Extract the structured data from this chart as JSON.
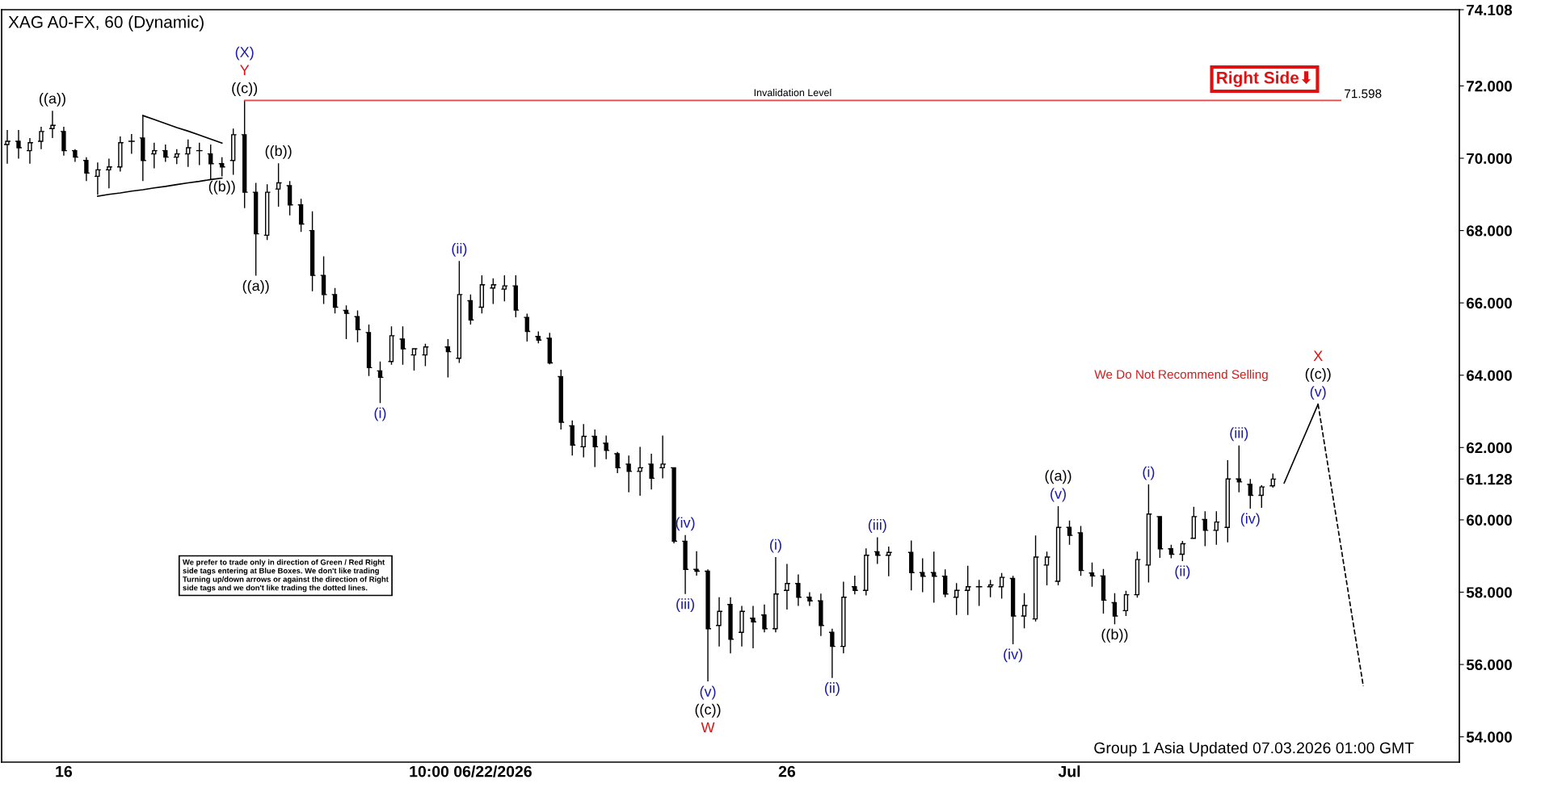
{
  "chart_data": {
    "type": "candlestick",
    "title": "XAG A0-FX, 60 (Dynamic)",
    "color": "#000000",
    "categories": [
      null,
      null,
      null,
      null,
      null,
      "16",
      null,
      null,
      null,
      null,
      null,
      null,
      null,
      null,
      null,
      null,
      null,
      null,
      null,
      null,
      null,
      null,
      null,
      null,
      null,
      null,
      null,
      null,
      null,
      null,
      null,
      null,
      null,
      null,
      null,
      null,
      null,
      null,
      null,
      null,
      null,
      "10:00 06/22/2026",
      null,
      null,
      null,
      null,
      null,
      null,
      null,
      null,
      null,
      null,
      null,
      null,
      null,
      null,
      null,
      null,
      null,
      null,
      null,
      null,
      null,
      null,
      null,
      null,
      null,
      null,
      null,
      "26",
      null,
      null,
      null,
      null,
      null,
      null,
      null,
      null,
      null,
      null,
      null,
      null,
      null,
      null,
      null,
      null,
      null,
      null,
      null,
      null,
      null,
      null,
      null,
      null,
      "Jul",
      null,
      null,
      null,
      null,
      null,
      null,
      null,
      null,
      null,
      null,
      null,
      null,
      null,
      null,
      null,
      null,
      null,
      null,
      null,
      null,
      null,
      null,
      null,
      null,
      null,
      null,
      null,
      null,
      null,
      null,
      null,
      null,
      null,
      null
    ],
    "ohlc": [
      [
        70.38,
        70.78,
        69.85,
        70.47
      ],
      [
        70.47,
        70.78,
        69.99,
        70.29
      ],
      [
        70.21,
        70.56,
        69.85,
        70.43
      ],
      [
        70.47,
        70.87,
        70.25,
        70.74
      ],
      [
        70.82,
        71.31,
        70.56,
        70.91
      ],
      [
        70.74,
        70.87,
        70.07,
        70.21
      ],
      [
        70.21,
        70.25,
        69.9,
        70.03
      ],
      [
        69.94,
        70.03,
        69.37,
        69.59
      ],
      [
        69.5,
        69.88,
        68.99,
        69.68
      ],
      [
        69.68,
        69.99,
        69.17,
        69.76
      ],
      [
        69.76,
        70.6,
        69.63,
        70.43
      ],
      [
        70.47,
        70.67,
        70.12,
        70.47
      ],
      [
        70.56,
        71.19,
        69.37,
        69.94
      ],
      [
        70.12,
        70.43,
        69.72,
        70.21
      ],
      [
        70.21,
        70.38,
        69.9,
        70.03
      ],
      [
        70.03,
        70.25,
        69.84,
        70.12
      ],
      [
        70.12,
        70.52,
        69.76,
        70.29
      ],
      [
        70.21,
        70.43,
        69.81,
        70.21
      ],
      [
        70.12,
        70.38,
        69.41,
        69.85
      ],
      [
        69.85,
        70.03,
        69.5,
        69.76
      ],
      [
        69.94,
        70.82,
        69.54,
        70.65
      ],
      [
        70.65,
        71.598,
        68.62,
        69.06
      ],
      [
        69.06,
        69.32,
        66.75,
        67.91
      ],
      [
        67.87,
        69.28,
        67.74,
        69.06
      ],
      [
        69.15,
        69.86,
        68.66,
        69.32
      ],
      [
        69.24,
        69.37,
        68.42,
        68.71
      ],
      [
        68.71,
        68.88,
        67.96,
        68.18
      ],
      [
        68.0,
        68.53,
        66.32,
        66.76
      ],
      [
        66.76,
        67.29,
        65.97,
        66.23
      ],
      [
        66.23,
        66.41,
        65.71,
        65.88
      ],
      [
        65.79,
        65.93,
        65.0,
        65.71
      ],
      [
        65.62,
        65.79,
        64.91,
        65.26
      ],
      [
        65.18,
        65.4,
        63.98,
        64.21
      ],
      [
        64.12,
        64.38,
        63.23,
        63.94
      ],
      [
        64.38,
        65.35,
        64.29,
        65.09
      ],
      [
        65.0,
        65.35,
        64.29,
        64.73
      ],
      [
        64.56,
        64.75,
        64.13,
        64.73
      ],
      [
        64.56,
        64.87,
        64.25,
        64.78
      ],
      null,
      [
        64.78,
        65.0,
        63.94,
        64.65
      ],
      [
        64.47,
        67.16,
        64.34,
        66.23
      ],
      [
        66.06,
        66.23,
        65.4,
        65.53
      ],
      [
        65.88,
        66.76,
        65.71,
        66.5
      ],
      [
        66.41,
        66.68,
        65.97,
        66.5
      ],
      [
        66.38,
        66.76,
        66.04,
        66.47
      ],
      [
        66.47,
        66.76,
        65.6,
        65.8
      ],
      [
        65.6,
        65.7,
        64.93,
        65.21
      ],
      [
        65.07,
        65.21,
        64.88,
        64.97
      ],
      [
        65.02,
        65.17,
        64.3,
        64.34
      ],
      [
        63.96,
        64.15,
        62.5,
        62.7
      ],
      [
        62.6,
        62.75,
        61.78,
        62.07
      ],
      [
        62.02,
        62.65,
        61.73,
        62.31
      ],
      [
        62.31,
        62.5,
        61.46,
        62.02
      ],
      [
        62.12,
        62.33,
        61.68,
        61.92
      ],
      [
        61.83,
        61.88,
        61.29,
        61.44
      ],
      [
        61.54,
        61.78,
        60.76,
        61.34
      ],
      [
        61.34,
        62.02,
        60.67,
        61.44
      ],
      [
        61.54,
        61.83,
        60.84,
        61.15
      ],
      [
        61.44,
        62.33,
        61.15,
        61.54
      ],
      [
        61.44,
        61.44,
        59.35,
        59.41
      ],
      [
        59.41,
        59.58,
        57.95,
        58.63
      ],
      [
        58.63,
        59.13,
        58.46,
        58.58
      ],
      [
        58.58,
        58.63,
        55.53,
        56.99
      ],
      [
        57.08,
        57.86,
        56.5,
        57.47
      ],
      [
        57.66,
        57.86,
        56.31,
        56.7
      ],
      [
        56.89,
        57.62,
        56.5,
        57.47
      ],
      [
        57.28,
        57.62,
        56.45,
        57.18
      ],
      [
        57.37,
        57.66,
        56.89,
        56.99
      ],
      [
        56.99,
        58.97,
        56.89,
        57.95
      ],
      [
        58.05,
        58.78,
        57.52,
        58.24
      ],
      [
        58.24,
        58.49,
        57.62,
        57.86
      ],
      [
        57.86,
        58.0,
        57.62,
        57.76
      ],
      [
        57.76,
        57.96,
        56.79,
        57.08
      ],
      [
        56.89,
        56.99,
        55.63,
        56.5
      ],
      [
        56.5,
        58.29,
        56.31,
        57.86
      ],
      [
        58.15,
        58.46,
        57.94,
        58.05
      ],
      [
        58.05,
        59.21,
        57.91,
        59.02
      ],
      [
        59.12,
        59.52,
        58.78,
        59.02
      ],
      [
        59.02,
        59.26,
        58.44,
        59.1
      ],
      null,
      [
        59.1,
        59.43,
        58.05,
        58.54
      ],
      [
        58.54,
        58.94,
        58.0,
        58.44
      ],
      [
        58.54,
        59.12,
        57.71,
        58.44
      ],
      [
        58.44,
        58.63,
        57.86,
        57.95
      ],
      [
        57.86,
        58.25,
        57.37,
        58.05
      ],
      [
        58.05,
        58.73,
        57.37,
        58.15
      ],
      [
        58.15,
        58.34,
        57.62,
        58.15
      ],
      [
        58.15,
        58.34,
        57.86,
        58.2
      ],
      [
        58.15,
        58.53,
        57.82,
        58.41
      ],
      [
        58.38,
        58.45,
        56.56,
        57.34
      ],
      [
        57.34,
        57.97,
        57.0,
        57.63
      ],
      [
        57.26,
        59.57,
        57.19,
        58.97
      ],
      [
        58.75,
        59.12,
        58.19,
        58.97
      ],
      [
        58.3,
        60.38,
        58.19,
        59.79
      ],
      [
        59.79,
        59.98,
        59.31,
        59.57
      ],
      [
        59.64,
        59.83,
        58.45,
        58.6
      ],
      [
        58.53,
        58.82,
        58.15,
        58.45
      ],
      [
        58.45,
        58.64,
        57.41,
        57.78
      ],
      [
        57.71,
        57.97,
        57.11,
        57.34
      ],
      [
        57.49,
        58.04,
        57.34,
        57.93
      ],
      [
        57.93,
        59.12,
        57.85,
        58.9
      ],
      [
        58.75,
        60.98,
        58.27,
        60.16
      ],
      [
        60.09,
        60.09,
        58.95,
        59.2
      ],
      [
        59.2,
        59.31,
        58.94,
        59.05
      ],
      [
        59.05,
        59.42,
        58.86,
        59.34
      ],
      [
        59.49,
        60.36,
        59.49,
        60.09
      ],
      [
        60.01,
        60.24,
        59.27,
        59.71
      ],
      [
        59.71,
        60.24,
        59.31,
        59.94
      ],
      [
        59.79,
        61.65,
        59.38,
        61.13
      ],
      [
        61.13,
        62.06,
        60.76,
        61.05
      ],
      [
        60.98,
        61.13,
        60.31,
        60.68
      ],
      [
        60.68,
        60.96,
        60.33,
        60.91
      ],
      [
        60.94,
        61.28,
        60.89,
        61.128
      ],
      null,
      null,
      null,
      null,
      null,
      null,
      null,
      null,
      null,
      null,
      null,
      null,
      null,
      null,
      null,
      null
    ],
    "series": [
      {
        "type": "line",
        "color": "#000000",
        "values": [
          null,
          null,
          null,
          null,
          null,
          null,
          null,
          null,
          null,
          null,
          null,
          null,
          71.18,
          71.07,
          70.96,
          70.85,
          70.75,
          70.64,
          70.53,
          70.42,
          null,
          null,
          null,
          null,
          null,
          null,
          null,
          null,
          null,
          null,
          null,
          null,
          null,
          null,
          null,
          null,
          null,
          null,
          null,
          null,
          null,
          null,
          null,
          null,
          null,
          null,
          null,
          null,
          null,
          null,
          null,
          null,
          null,
          null,
          null,
          null,
          null,
          null,
          null,
          null,
          null,
          null,
          null,
          null,
          null,
          null,
          null,
          null,
          null,
          null,
          null,
          null,
          null,
          null,
          null,
          null,
          null,
          null,
          null,
          null,
          null,
          null,
          null,
          null,
          null,
          null,
          null,
          null,
          null,
          null,
          null,
          null,
          null,
          null,
          null,
          null,
          null,
          null,
          null,
          null,
          null,
          null,
          null,
          null,
          null,
          null,
          null,
          null,
          null,
          null,
          null,
          null,
          null,
          null,
          null,
          null,
          null,
          null,
          null,
          null,
          null,
          null,
          null,
          null,
          null,
          null,
          null,
          null,
          null
        ]
      },
      {
        "type": "line",
        "color": "#000000",
        "values": [
          null,
          null,
          null,
          null,
          null,
          null,
          null,
          null,
          68.95,
          69.0,
          69.04,
          69.09,
          69.13,
          69.18,
          69.22,
          69.27,
          69.32,
          69.36,
          69.41,
          69.45,
          null,
          null,
          null,
          null,
          null,
          null,
          null,
          null,
          null,
          null,
          null,
          null,
          null,
          null,
          null,
          null,
          null,
          null,
          null,
          null,
          null,
          null,
          null,
          null,
          null,
          null,
          null,
          null,
          null,
          null,
          null,
          null,
          null,
          null,
          null,
          null,
          null,
          null,
          null,
          null,
          null,
          null,
          null,
          null,
          null,
          null,
          null,
          null,
          null,
          null,
          null,
          null,
          null,
          null,
          null,
          null,
          null,
          null,
          null,
          null,
          null,
          null,
          null,
          null,
          null,
          null,
          null,
          null,
          null,
          null,
          null,
          null,
          null,
          null,
          null,
          null,
          null,
          null,
          null,
          null,
          null,
          null,
          null,
          null,
          null,
          null,
          null,
          null,
          null,
          null,
          null,
          null,
          null,
          null,
          null,
          null,
          null,
          null,
          null,
          null,
          null,
          null,
          null,
          null,
          null,
          null,
          null,
          null,
          null
        ]
      },
      {
        "type": "line",
        "name": "Invalidation Level",
        "color": "#e04848",
        "values": [
          null,
          null,
          null,
          null,
          null,
          null,
          null,
          null,
          null,
          null,
          null,
          null,
          null,
          null,
          null,
          null,
          null,
          null,
          null,
          null,
          null,
          71.598,
          71.598,
          71.598,
          71.598,
          71.598,
          71.598,
          71.598,
          71.598,
          71.598,
          71.598,
          71.598,
          71.598,
          71.598,
          71.598,
          71.598,
          71.598,
          71.598,
          71.598,
          71.598,
          71.598,
          71.598,
          71.598,
          71.598,
          71.598,
          71.598,
          71.598,
          71.598,
          71.598,
          71.598,
          71.598,
          71.598,
          71.598,
          71.598,
          71.598,
          71.598,
          71.598,
          71.598,
          71.598,
          71.598,
          71.598,
          71.598,
          71.598,
          71.598,
          71.598,
          71.598,
          71.598,
          71.598,
          71.598,
          71.598,
          71.598,
          71.598,
          71.598,
          71.598,
          71.598,
          71.598,
          71.598,
          71.598,
          71.598,
          71.598,
          71.598,
          71.598,
          71.598,
          71.598,
          71.598,
          71.598,
          71.598,
          71.598,
          71.598,
          71.598,
          71.598,
          71.598,
          71.598,
          71.598,
          71.598,
          71.598,
          71.598,
          71.598,
          71.598,
          71.598,
          71.598,
          71.598,
          71.598,
          71.598,
          71.598,
          71.598,
          71.598,
          71.598,
          71.598,
          71.598,
          71.598,
          71.598,
          71.598,
          71.598,
          71.598,
          71.598,
          71.598,
          71.598,
          71.598,
          null,
          null,
          null,
          null,
          null,
          null,
          null,
          null,
          null,
          null
        ],
        "value_labels": [
          null,
          null,
          null,
          null,
          null,
          null,
          null,
          null,
          null,
          null,
          null,
          null,
          null,
          null,
          null,
          null,
          null,
          null,
          null,
          null,
          null,
          null,
          null,
          null,
          null,
          null,
          null,
          null,
          null,
          null,
          null,
          null,
          null,
          null,
          null,
          null,
          null,
          null,
          null,
          null,
          null,
          null,
          null,
          null,
          null,
          null,
          null,
          null,
          null,
          null,
          null,
          null,
          null,
          null,
          null,
          null,
          null,
          null,
          null,
          null,
          null,
          null,
          null,
          null,
          null,
          null,
          null,
          null,
          null,
          null,
          null,
          null,
          null,
          null,
          null,
          null,
          null,
          null,
          null,
          null,
          null,
          null,
          null,
          null,
          null,
          null,
          null,
          null,
          null,
          null,
          null,
          null,
          null,
          null,
          null,
          null,
          null,
          null,
          null,
          null,
          null,
          null,
          null,
          null,
          null,
          null,
          null,
          null,
          null,
          null,
          null,
          null,
          null,
          null,
          null,
          null,
          null,
          null,
          "71.598",
          null,
          null,
          null,
          null,
          null,
          null,
          null,
          null,
          null,
          null
        ]
      },
      {
        "type": "line",
        "color": "#000000",
        "values": [
          null,
          null,
          null,
          null,
          null,
          null,
          null,
          null,
          null,
          null,
          null,
          null,
          null,
          null,
          null,
          null,
          null,
          null,
          null,
          null,
          null,
          null,
          null,
          null,
          null,
          null,
          null,
          null,
          null,
          null,
          null,
          null,
          null,
          null,
          null,
          null,
          null,
          null,
          null,
          null,
          null,
          null,
          null,
          null,
          null,
          null,
          null,
          null,
          null,
          null,
          null,
          null,
          null,
          null,
          null,
          null,
          null,
          null,
          null,
          null,
          null,
          null,
          null,
          null,
          null,
          null,
          null,
          null,
          null,
          null,
          null,
          null,
          null,
          null,
          null,
          null,
          null,
          null,
          null,
          null,
          null,
          null,
          null,
          null,
          null,
          null,
          null,
          null,
          null,
          null,
          null,
          null,
          null,
          null,
          null,
          null,
          null,
          null,
          null,
          null,
          null,
          null,
          null,
          null,
          null,
          null,
          null,
          null,
          null,
          null,
          null,
          null,
          null,
          61.02,
          61.75,
          62.47,
          63.2,
          null,
          null,
          null,
          null,
          null,
          null,
          null,
          null,
          null,
          null,
          null,
          null
        ]
      },
      {
        "type": "line",
        "color": "#000000",
        "line_style": "dashed",
        "values": [
          null,
          null,
          null,
          null,
          null,
          null,
          null,
          null,
          null,
          null,
          null,
          null,
          null,
          null,
          null,
          null,
          null,
          null,
          null,
          null,
          null,
          null,
          null,
          null,
          null,
          null,
          null,
          null,
          null,
          null,
          null,
          null,
          null,
          null,
          null,
          null,
          null,
          null,
          null,
          null,
          null,
          null,
          null,
          null,
          null,
          null,
          null,
          null,
          null,
          null,
          null,
          null,
          null,
          null,
          null,
          null,
          null,
          null,
          null,
          null,
          null,
          null,
          null,
          null,
          null,
          null,
          null,
          null,
          null,
          null,
          null,
          null,
          null,
          null,
          null,
          null,
          null,
          null,
          null,
          null,
          null,
          null,
          null,
          null,
          null,
          null,
          null,
          null,
          null,
          null,
          null,
          null,
          null,
          null,
          null,
          null,
          null,
          null,
          null,
          null,
          null,
          null,
          null,
          null,
          null,
          null,
          null,
          null,
          null,
          null,
          null,
          null,
          null,
          null,
          null,
          null,
          63.2,
          61.25,
          59.3,
          57.35,
          55.4,
          null,
          null,
          null,
          null,
          null,
          null,
          null,
          null
        ]
      }
    ],
    "annotations": [
      {
        "text": "((a))",
        "y": 71.31
      },
      {
        "text": "((c))",
        "y": 71.598
      },
      {
        "text": "Y",
        "y": 71.598
      },
      {
        "text": "(X)",
        "y": 71.598
      },
      {
        "text": "((b))",
        "y": 69.5
      },
      {
        "text": "((b))",
        "y": 69.86
      },
      {
        "text": "((a))",
        "y": 66.75
      },
      {
        "text": "(i)",
        "y": 63.23
      },
      {
        "text": "(ii)",
        "y": 67.16
      },
      {
        "text": "(iii)",
        "y": 57.95
      },
      {
        "text": "(iv)",
        "y": 59.58
      },
      {
        "text": "(v)",
        "y": 55.53
      },
      {
        "text": "((c))",
        "y": 55.53
      },
      {
        "text": "W",
        "y": 55.53
      },
      {
        "text": "(i)",
        "y": 58.97
      },
      {
        "text": "(ii)",
        "y": 55.63
      },
      {
        "text": "(iii)",
        "y": 59.52
      },
      {
        "text": "(iv)",
        "y": 56.56
      },
      {
        "text": "(v)",
        "y": 60.38
      },
      {
        "text": "((a))",
        "y": 60.38
      },
      {
        "text": "((b))",
        "y": 57.11
      },
      {
        "text": "(i)",
        "y": 60.98
      },
      {
        "text": "(ii)",
        "y": 58.86
      },
      {
        "text": "(iii)",
        "y": 62.06
      },
      {
        "text": "(iv)",
        "y": 60.31
      },
      {
        "text": "(v)",
        "y": 63.2
      },
      {
        "text": "((c))",
        "y": 63.2
      },
      {
        "text": "X",
        "y": 63.2
      },
      "We Do Not Recommend Selling",
      "Right Side⬇",
      "We prefer to trade only in direction of Green / Red Right\nside tags entering at Blue Boxes. We don't like trading\nTurning up/down arrows or against the direction of Right\nside tags and we don't like trading the dotted lines.",
      "Group 1 Asia Updated 07.03.2026 01:00 GMT"
    ],
    "ylim": [
      53.3,
      74.108
    ],
    "yticks": [
      {
        "value": 54,
        "label": "54.000"
      },
      {
        "value": 56,
        "label": "56.000"
      },
      {
        "value": 58,
        "label": "58.000"
      },
      {
        "value": 60,
        "label": "60.000"
      },
      {
        "value": 61.128,
        "label": "61.128"
      },
      {
        "value": 62,
        "label": "62.000"
      },
      {
        "value": 64,
        "label": "64.000"
      },
      {
        "value": 66,
        "label": "66.000"
      },
      {
        "value": 68,
        "label": "68.000"
      },
      {
        "value": 70,
        "label": "70.000"
      },
      {
        "value": 72,
        "label": "72.000"
      },
      {
        "value": 74.108,
        "label": "74.108"
      }
    ],
    "grid": false
  }
}
